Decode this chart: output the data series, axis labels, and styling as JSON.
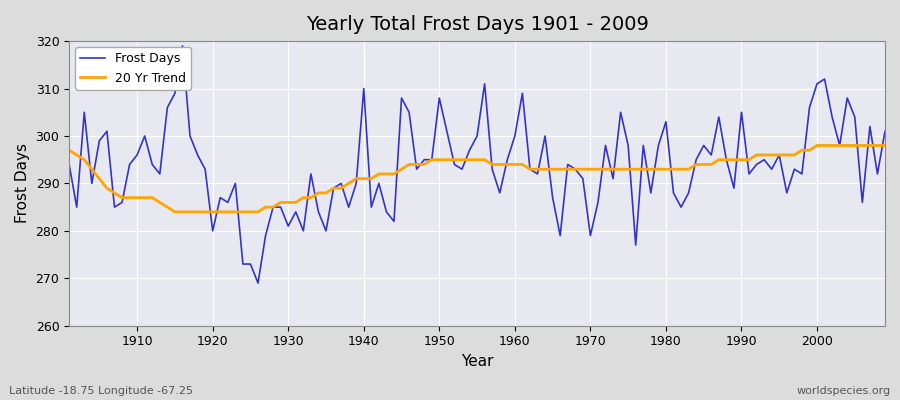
{
  "title": "Yearly Total Frost Days 1901 - 2009",
  "xlabel": "Year",
  "ylabel": "Frost Days",
  "footnote_left": "Latitude -18.75 Longitude -67.25",
  "footnote_right": "worldspecies.org",
  "legend_labels": [
    "Frost Days",
    "20 Yr Trend"
  ],
  "line_color": "#3333cc",
  "trend_color": "#FFA500",
  "background_color": "#dcdcdc",
  "plot_bg_color": "#e8e8f0",
  "grid_color": "#ffffff",
  "ylim": [
    260,
    320
  ],
  "xlim": [
    1901,
    2009
  ],
  "yticks": [
    260,
    270,
    280,
    290,
    300,
    310,
    320
  ],
  "xticks": [
    1910,
    1920,
    1930,
    1940,
    1950,
    1960,
    1970,
    1980,
    1990,
    2000
  ],
  "years": [
    1901,
    1902,
    1903,
    1904,
    1905,
    1906,
    1907,
    1908,
    1909,
    1910,
    1911,
    1912,
    1913,
    1914,
    1915,
    1916,
    1917,
    1918,
    1919,
    1920,
    1921,
    1922,
    1923,
    1924,
    1925,
    1926,
    1927,
    1928,
    1929,
    1930,
    1931,
    1932,
    1933,
    1934,
    1935,
    1936,
    1937,
    1938,
    1939,
    1940,
    1941,
    1942,
    1943,
    1944,
    1945,
    1946,
    1947,
    1948,
    1949,
    1950,
    1951,
    1952,
    1953,
    1954,
    1955,
    1956,
    1957,
    1958,
    1959,
    1960,
    1961,
    1962,
    1963,
    1964,
    1965,
    1966,
    1967,
    1968,
    1969,
    1970,
    1971,
    1972,
    1973,
    1974,
    1975,
    1976,
    1977,
    1978,
    1979,
    1980,
    1981,
    1982,
    1983,
    1984,
    1985,
    1986,
    1987,
    1988,
    1989,
    1990,
    1991,
    1992,
    1993,
    1994,
    1995,
    1996,
    1997,
    1998,
    1999,
    2000,
    2001,
    2002,
    2003,
    2004,
    2005,
    2006,
    2007,
    2008,
    2009
  ],
  "frost_days": [
    294,
    285,
    305,
    290,
    299,
    301,
    285,
    286,
    294,
    296,
    300,
    294,
    292,
    306,
    309,
    319,
    300,
    296,
    293,
    280,
    287,
    286,
    290,
    273,
    273,
    269,
    279,
    285,
    285,
    281,
    284,
    280,
    292,
    284,
    280,
    289,
    290,
    285,
    290,
    310,
    285,
    290,
    284,
    282,
    308,
    305,
    293,
    295,
    295,
    308,
    301,
    294,
    293,
    297,
    300,
    311,
    293,
    288,
    295,
    300,
    309,
    293,
    292,
    300,
    287,
    279,
    294,
    293,
    291,
    279,
    286,
    298,
    291,
    305,
    298,
    277,
    298,
    288,
    298,
    303,
    288,
    285,
    288,
    295,
    298,
    296,
    304,
    295,
    289,
    305,
    292,
    294,
    295,
    293,
    296,
    288,
    293,
    292,
    306,
    311,
    312,
    304,
    298,
    308,
    304,
    286,
    302,
    292,
    301
  ],
  "trend_years": [
    1901,
    1902,
    1903,
    1904,
    1905,
    1906,
    1907,
    1908,
    1909,
    1910,
    1911,
    1912,
    1913,
    1914,
    1915,
    1916,
    1917,
    1918,
    1919,
    1920,
    1921,
    1922,
    1923,
    1924,
    1925,
    1926,
    1927,
    1928,
    1929,
    1930,
    1931,
    1932,
    1933,
    1934,
    1935,
    1936,
    1937,
    1938,
    1939,
    1940,
    1941,
    1942,
    1943,
    1944,
    1945,
    1946,
    1947,
    1948,
    1949,
    1950,
    1951,
    1952,
    1953,
    1954,
    1955,
    1956,
    1957,
    1958,
    1959,
    1960,
    1961,
    1962,
    1963,
    1964,
    1965,
    1966,
    1967,
    1968,
    1969,
    1970,
    1971,
    1972,
    1973,
    1974,
    1975,
    1976,
    1977,
    1978,
    1979,
    1980,
    1981,
    1982,
    1983,
    1984,
    1985,
    1986,
    1987,
    1988,
    1989,
    1990,
    1991,
    1992,
    1993,
    1994,
    1995,
    1996,
    1997,
    1998,
    1999,
    2000,
    2001,
    2002,
    2003,
    2004,
    2005,
    2006,
    2007,
    2008,
    2009
  ],
  "trend_values": [
    297,
    296,
    295,
    293,
    291,
    289,
    288,
    287,
    287,
    287,
    287,
    287,
    286,
    285,
    284,
    284,
    284,
    284,
    284,
    284,
    284,
    284,
    284,
    284,
    284,
    284,
    285,
    285,
    286,
    286,
    286,
    287,
    287,
    288,
    288,
    289,
    289,
    290,
    291,
    291,
    291,
    292,
    292,
    292,
    293,
    294,
    294,
    294,
    295,
    295,
    295,
    295,
    295,
    295,
    295,
    295,
    294,
    294,
    294,
    294,
    294,
    293,
    293,
    293,
    293,
    293,
    293,
    293,
    293,
    293,
    293,
    293,
    293,
    293,
    293,
    293,
    293,
    293,
    293,
    293,
    293,
    293,
    293,
    294,
    294,
    294,
    295,
    295,
    295,
    295,
    295,
    296,
    296,
    296,
    296,
    296,
    296,
    297,
    297,
    298,
    298,
    298,
    298,
    298,
    298,
    298,
    298,
    298,
    298
  ]
}
